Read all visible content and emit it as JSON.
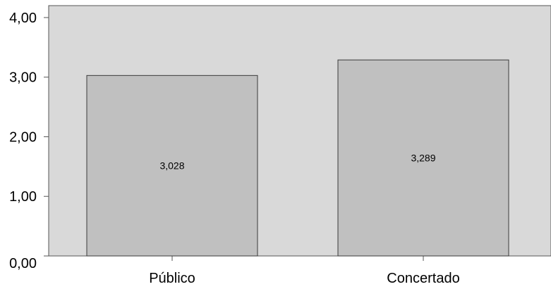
{
  "chart_data": {
    "type": "bar",
    "categories": [
      "Público",
      "Concertado"
    ],
    "values": [
      3.028,
      3.289
    ],
    "data_labels": [
      "3,028",
      "3,289"
    ],
    "y_ticks": [
      0,
      1,
      2,
      3,
      4
    ],
    "y_tick_labels": [
      "0,00",
      "1,00",
      "2,00",
      "3,00",
      "4,00"
    ],
    "ylim": [
      0,
      4.2
    ],
    "title": "",
    "xlabel": "",
    "ylabel": "",
    "grid": false,
    "legend": "none",
    "colors": {
      "plot_background": "#d9d9d9",
      "bar_fill": "#c0c0c0",
      "bar_stroke": "#3a3a3a",
      "axis": "#555555"
    }
  }
}
